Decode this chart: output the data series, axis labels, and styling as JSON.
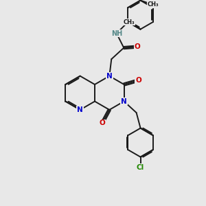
{
  "background_color": "#e8e8e8",
  "bond_color": "#1a1a1a",
  "N_color": "#0000cc",
  "O_color": "#cc0000",
  "Cl_color": "#228800",
  "NH_color": "#558888",
  "bond_width": 1.4,
  "figsize": [
    3.0,
    3.0
  ],
  "dpi": 100,
  "xlim": [
    0,
    10
  ],
  "ylim": [
    0,
    10
  ]
}
